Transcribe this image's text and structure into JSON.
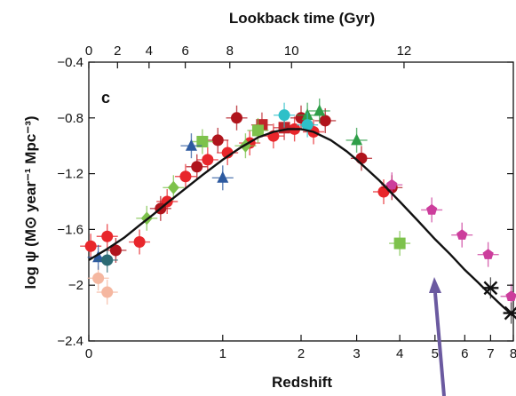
{
  "chart_data": {
    "type": "scatter",
    "panel_label": "c",
    "top_axis_label": "Lookback time (Gyr)",
    "top_axis_ticks": [
      0,
      2,
      4,
      6,
      8,
      10,
      12
    ],
    "xlabel": "Redshift",
    "ylabel": "log ψ (M⊙ year⁻¹ Mpc⁻³)",
    "x_scale": "log(1+z)",
    "xlim": [
      0,
      8
    ],
    "xticks": [
      "0",
      "1",
      "2",
      "3",
      "4",
      "5",
      "6",
      "7",
      "8"
    ],
    "ylim": [
      -2.4,
      -0.4
    ],
    "yticks": [
      "-0.4",
      "-0.8",
      "-1.2",
      "-1.6",
      "-2",
      "-2.4"
    ],
    "fit_curve": {
      "color": "#111111",
      "x": [
        0,
        0.1,
        0.2,
        0.3,
        0.4,
        0.5,
        0.6,
        0.8,
        1.0,
        1.2,
        1.4,
        1.6,
        1.8,
        2.0,
        2.2,
        2.5,
        2.8,
        3.0,
        3.5,
        4.0,
        4.5,
        5.0,
        5.5,
        6.0,
        6.5,
        7.0,
        7.5,
        8.0
      ],
      "y": [
        -1.82,
        -1.74,
        -1.66,
        -1.57,
        -1.49,
        -1.41,
        -1.34,
        -1.21,
        -1.1,
        -1.01,
        -0.94,
        -0.9,
        -0.88,
        -0.88,
        -0.9,
        -0.96,
        -1.04,
        -1.1,
        -1.25,
        -1.4,
        -1.54,
        -1.67,
        -1.78,
        -1.89,
        -1.98,
        -2.07,
        -2.15,
        -2.22
      ]
    },
    "series": [
      {
        "marker": "circle",
        "color": "#e8262b",
        "points": [
          {
            "x": 0.01,
            "y": -1.72
          },
          {
            "x": 0.1,
            "y": -1.65
          },
          {
            "x": 0.3,
            "y": -1.69
          },
          {
            "x": 0.5,
            "y": -1.4
          },
          {
            "x": 0.65,
            "y": -1.22
          },
          {
            "x": 0.85,
            "y": -1.1
          },
          {
            "x": 1.05,
            "y": -1.05
          },
          {
            "x": 1.3,
            "y": -0.98
          },
          {
            "x": 1.6,
            "y": -0.93
          },
          {
            "x": 1.9,
            "y": -0.88
          },
          {
            "x": 2.2,
            "y": -0.9
          },
          {
            "x": 3.6,
            "y": -1.33
          }
        ]
      },
      {
        "marker": "circle",
        "color": "#b0141c",
        "points": [
          {
            "x": 0.15,
            "y": -1.75
          },
          {
            "x": 0.45,
            "y": -1.45
          },
          {
            "x": 0.75,
            "y": -1.15
          },
          {
            "x": 0.95,
            "y": -0.96
          },
          {
            "x": 1.15,
            "y": -0.8
          },
          {
            "x": 2.0,
            "y": -0.8
          },
          {
            "x": 2.4,
            "y": -0.82
          },
          {
            "x": 3.1,
            "y": -1.09
          },
          {
            "x": 3.8,
            "y": -1.3
          }
        ]
      },
      {
        "marker": "circle",
        "color": "#f5b7a0",
        "points": [
          {
            "x": 0.05,
            "y": -1.95
          },
          {
            "x": 0.1,
            "y": -2.05
          }
        ]
      },
      {
        "marker": "square",
        "color": "#c0232a",
        "points": [
          {
            "x": 1.45,
            "y": -0.85
          },
          {
            "x": 1.75,
            "y": -0.87
          }
        ]
      },
      {
        "marker": "square",
        "color": "#7dc24b",
        "points": [
          {
            "x": 0.8,
            "y": -0.97
          },
          {
            "x": 1.4,
            "y": -0.89
          },
          {
            "x": 4.0,
            "y": -1.7
          }
        ]
      },
      {
        "marker": "triangle",
        "color": "#2e9e48",
        "points": [
          {
            "x": 2.1,
            "y": -0.78
          },
          {
            "x": 2.3,
            "y": -0.75
          },
          {
            "x": 3.0,
            "y": -0.96
          }
        ]
      },
      {
        "marker": "triangle",
        "color": "#2d5aa0",
        "points": [
          {
            "x": 0.05,
            "y": -1.8
          },
          {
            "x": 0.7,
            "y": -1.0
          },
          {
            "x": 1.0,
            "y": -1.23
          }
        ]
      },
      {
        "marker": "diamond",
        "color": "#7dc24b",
        "points": [
          {
            "x": 0.35,
            "y": -1.52
          },
          {
            "x": 0.55,
            "y": -1.3
          },
          {
            "x": 1.25,
            "y": -1.0
          }
        ]
      },
      {
        "marker": "circle",
        "color": "#2ec0c8",
        "points": [
          {
            "x": 1.75,
            "y": -0.78
          },
          {
            "x": 2.1,
            "y": -0.85
          }
        ]
      },
      {
        "marker": "circle",
        "color": "#2c6b74",
        "points": [
          {
            "x": 0.1,
            "y": -1.82
          }
        ]
      },
      {
        "marker": "pentagon",
        "color": "#cc3d9c",
        "points": [
          {
            "x": 3.8,
            "y": -1.28
          },
          {
            "x": 4.9,
            "y": -1.46
          },
          {
            "x": 5.9,
            "y": -1.64
          },
          {
            "x": 6.9,
            "y": -1.78
          },
          {
            "x": 7.9,
            "y": -2.08
          }
        ]
      },
      {
        "marker": "cross",
        "color": "#111111",
        "points": [
          {
            "x": 7.0,
            "y": -2.02
          },
          {
            "x": 7.9,
            "y": -2.2
          }
        ]
      }
    ]
  }
}
